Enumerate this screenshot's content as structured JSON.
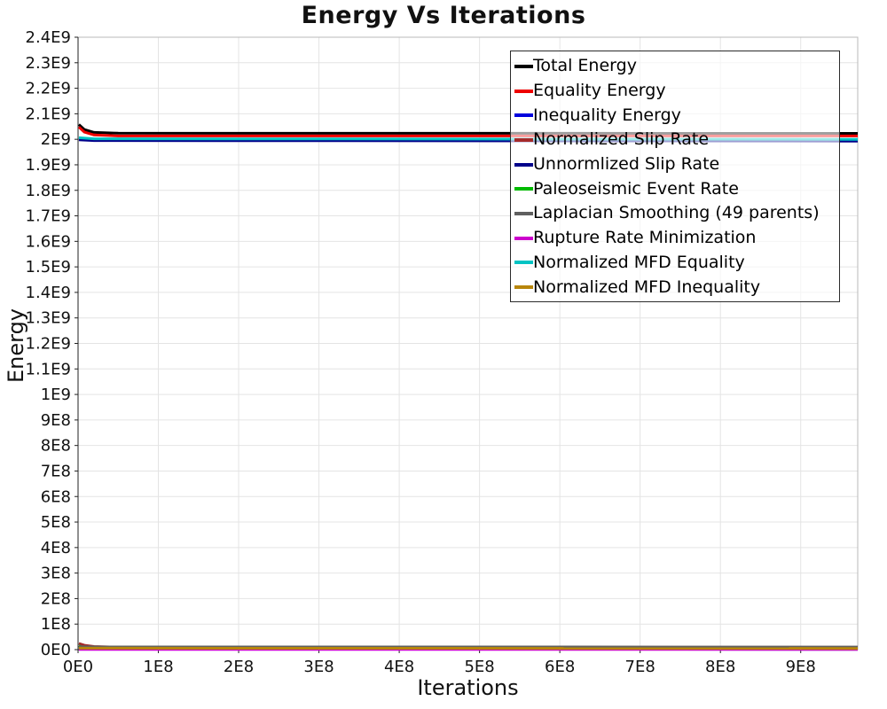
{
  "chart_data": {
    "type": "line",
    "title": "Energy Vs Iterations",
    "xlabel": "Iterations",
    "ylabel": "Energy",
    "xlim": [
      0,
      971000000
    ],
    "ylim": [
      0,
      2400000000
    ],
    "grid": true,
    "legend_position": "top-right",
    "x_ticks": [
      {
        "label": "0E0",
        "value": 0
      },
      {
        "label": "1E8",
        "value": 100000000
      },
      {
        "label": "2E8",
        "value": 200000000
      },
      {
        "label": "3E8",
        "value": 300000000
      },
      {
        "label": "4E8",
        "value": 400000000
      },
      {
        "label": "5E8",
        "value": 500000000
      },
      {
        "label": "6E8",
        "value": 600000000
      },
      {
        "label": "7E8",
        "value": 700000000
      },
      {
        "label": "8E8",
        "value": 800000000
      },
      {
        "label": "9E8",
        "value": 900000000
      }
    ],
    "y_ticks": [
      {
        "label": "0E0",
        "value": 0
      },
      {
        "label": "1E8",
        "value": 100000000
      },
      {
        "label": "2E8",
        "value": 200000000
      },
      {
        "label": "3E8",
        "value": 300000000
      },
      {
        "label": "4E8",
        "value": 400000000
      },
      {
        "label": "5E8",
        "value": 500000000
      },
      {
        "label": "6E8",
        "value": 600000000
      },
      {
        "label": "7E8",
        "value": 700000000
      },
      {
        "label": "8E8",
        "value": 800000000
      },
      {
        "label": "9E8",
        "value": 900000000
      },
      {
        "label": "1E9",
        "value": 1000000000
      },
      {
        "label": "1.1E9",
        "value": 1100000000
      },
      {
        "label": "1.2E9",
        "value": 1200000000
      },
      {
        "label": "1.3E9",
        "value": 1300000000
      },
      {
        "label": "1.4E9",
        "value": 1400000000
      },
      {
        "label": "1.5E9",
        "value": 1500000000
      },
      {
        "label": "1.6E9",
        "value": 1600000000
      },
      {
        "label": "1.7E9",
        "value": 1700000000
      },
      {
        "label": "1.8E9",
        "value": 1800000000
      },
      {
        "label": "1.9E9",
        "value": 1900000000
      },
      {
        "label": "2E9",
        "value": 2000000000
      },
      {
        "label": "2.1E9",
        "value": 2100000000
      },
      {
        "label": "2.2E9",
        "value": 2200000000
      },
      {
        "label": "2.3E9",
        "value": 2300000000
      },
      {
        "label": "2.4E9",
        "value": 2400000000
      }
    ],
    "series": [
      {
        "name": "Total Energy",
        "color": "#000000",
        "points": [
          [
            1000000,
            2058000000
          ],
          [
            8000000,
            2038000000
          ],
          [
            20000000,
            2027000000
          ],
          [
            50000000,
            2024000000
          ],
          [
            971000000,
            2023000000
          ]
        ]
      },
      {
        "name": "Equality Energy",
        "color": "#ee0000",
        "points": [
          [
            1000000,
            2048000000
          ],
          [
            8000000,
            2028000000
          ],
          [
            20000000,
            2017000000
          ],
          [
            50000000,
            2013000000
          ],
          [
            971000000,
            2013000000
          ]
        ]
      },
      {
        "name": "Inequality Energy",
        "color": "#0000dd",
        "points": [
          [
            1000000,
            2500000
          ],
          [
            971000000,
            1500000
          ]
        ]
      },
      {
        "name": "Normalized Slip Rate",
        "color": "#a52a2a",
        "points": [
          [
            1000000,
            24000000
          ],
          [
            8000000,
            17000000
          ],
          [
            20000000,
            12000000
          ],
          [
            50000000,
            9500000
          ],
          [
            150000000,
            9000000
          ],
          [
            971000000,
            9000000
          ]
        ]
      },
      {
        "name": "Unnormlized Slip Rate",
        "color": "#00008b",
        "points": [
          [
            1000000,
            1998000000
          ],
          [
            20000000,
            1995000000
          ],
          [
            971000000,
            1993000000
          ]
        ]
      },
      {
        "name": "Paleoseismic Event Rate",
        "color": "#00bb00",
        "points": [
          [
            1000000,
            15000000
          ],
          [
            6000000,
            8000000
          ],
          [
            20000000,
            5500000
          ],
          [
            971000000,
            5000000
          ]
        ]
      },
      {
        "name": "Laplacian Smoothing (49 parents)",
        "color": "#5f5f5f",
        "points": [
          [
            1000000,
            11500000
          ],
          [
            30000000,
            10500000
          ],
          [
            971000000,
            10000000
          ]
        ]
      },
      {
        "name": "Rupture Rate Minimization",
        "color": "#cc00cc",
        "points": [
          [
            1000000,
            1200000
          ],
          [
            971000000,
            800000
          ]
        ]
      },
      {
        "name": "Normalized MFD Equality",
        "color": "#00c3c3",
        "points": [
          [
            1000000,
            2006000000
          ],
          [
            20000000,
            2002000000
          ],
          [
            971000000,
            2000000000
          ]
        ]
      },
      {
        "name": "Normalized MFD Inequality",
        "color": "#b8860b",
        "points": [
          [
            1000000,
            5500000
          ],
          [
            971000000,
            4500000
          ]
        ]
      }
    ],
    "colors": {
      "gridline": "#e4e4e4",
      "plot_border": "#b8b8b8",
      "axis_line": "#222222",
      "tick_label": "#111111"
    }
  }
}
